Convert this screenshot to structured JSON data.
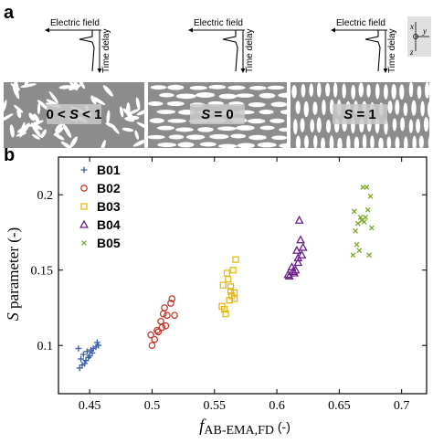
{
  "figure": {
    "panel_a_label": "a",
    "panel_b_label": "b"
  },
  "panel_a": {
    "field_label": "Electric field",
    "time_label": "Time delay",
    "coord_axes": [
      "x",
      "y",
      "z"
    ],
    "panels": [
      {
        "s_label_parts": [
          "0 < ",
          "S",
          " < 1"
        ],
        "kind": "mixed"
      },
      {
        "s_label_parts": [
          "",
          "S",
          " = 0"
        ],
        "kind": "horizontal"
      },
      {
        "s_label_parts": [
          "",
          "S",
          " = 1"
        ],
        "kind": "vertical"
      }
    ]
  },
  "chart_data": {
    "type": "scatter",
    "xlabel_main": "f",
    "xlabel_sub": "AB-EMA,FD",
    "xlabel_unit": " (-)",
    "ylabel_main": "S",
    "ylabel_rest": " parameter  (-)",
    "xlim": [
      0.425,
      0.72
    ],
    "ylim": [
      0.068,
      0.225
    ],
    "xticks": [
      0.45,
      0.5,
      0.55,
      0.6,
      0.65,
      0.7
    ],
    "xtick_labels": [
      "0.45",
      "0.5",
      "0.55",
      "0.6",
      "0.65",
      "0.7"
    ],
    "yticks": [
      0.1,
      0.15,
      0.2
    ],
    "ytick_labels": [
      "0.1",
      "0.15",
      "0.2"
    ],
    "grid": false,
    "legend_position": "top-left",
    "series": [
      {
        "name": "B01",
        "marker": "plus",
        "color": "#3a5faa",
        "points": [
          [
            0.441,
            0.098
          ],
          [
            0.445,
            0.094
          ],
          [
            0.448,
            0.096
          ],
          [
            0.443,
            0.091
          ],
          [
            0.447,
            0.09
          ],
          [
            0.451,
            0.097
          ],
          [
            0.453,
            0.098
          ],
          [
            0.456,
            0.102
          ],
          [
            0.452,
            0.095
          ],
          [
            0.45,
            0.093
          ],
          [
            0.442,
            0.085
          ],
          [
            0.444,
            0.087
          ],
          [
            0.449,
            0.092
          ],
          [
            0.455,
            0.099
          ],
          [
            0.446,
            0.088
          ],
          [
            0.457,
            0.1
          ]
        ]
      },
      {
        "name": "B02",
        "marker": "circle",
        "color": "#c0392b",
        "points": [
          [
            0.5,
            0.1
          ],
          [
            0.502,
            0.104
          ],
          [
            0.505,
            0.109
          ],
          [
            0.508,
            0.112
          ],
          [
            0.507,
            0.116
          ],
          [
            0.512,
            0.12
          ],
          [
            0.51,
            0.125
          ],
          [
            0.515,
            0.128
          ],
          [
            0.516,
            0.131
          ],
          [
            0.511,
            0.113
          ],
          [
            0.518,
            0.12
          ],
          [
            0.504,
            0.11
          ],
          [
            0.509,
            0.121
          ],
          [
            0.499,
            0.107
          ]
        ]
      },
      {
        "name": "B03",
        "marker": "square",
        "color": "#e6b817",
        "points": [
          [
            0.556,
            0.126
          ],
          [
            0.559,
            0.121
          ],
          [
            0.562,
            0.13
          ],
          [
            0.564,
            0.133
          ],
          [
            0.566,
            0.135
          ],
          [
            0.563,
            0.139
          ],
          [
            0.561,
            0.144
          ],
          [
            0.565,
            0.15
          ],
          [
            0.567,
            0.157
          ],
          [
            0.56,
            0.148
          ],
          [
            0.558,
            0.124
          ],
          [
            0.563,
            0.136
          ],
          [
            0.557,
            0.14
          ],
          [
            0.566,
            0.131
          ]
        ]
      },
      {
        "name": "B04",
        "marker": "triangle",
        "color": "#6a1b8a",
        "points": [
          [
            0.61,
            0.146
          ],
          [
            0.613,
            0.149
          ],
          [
            0.615,
            0.15
          ],
          [
            0.617,
            0.155
          ],
          [
            0.62,
            0.16
          ],
          [
            0.616,
            0.163
          ],
          [
            0.619,
            0.17
          ],
          [
            0.614,
            0.148
          ],
          [
            0.618,
            0.183
          ],
          [
            0.612,
            0.152
          ],
          [
            0.621,
            0.165
          ],
          [
            0.609,
            0.147
          ],
          [
            0.617,
            0.158
          ]
        ]
      },
      {
        "name": "B05",
        "marker": "x",
        "color": "#7aa828",
        "points": [
          [
            0.662,
            0.189
          ],
          [
            0.665,
            0.181
          ],
          [
            0.667,
            0.185
          ],
          [
            0.668,
            0.183
          ],
          [
            0.67,
            0.182
          ],
          [
            0.671,
            0.185
          ],
          [
            0.673,
            0.19
          ],
          [
            0.669,
            0.205
          ],
          [
            0.672,
            0.205
          ],
          [
            0.675,
            0.199
          ],
          [
            0.664,
            0.167
          ],
          [
            0.666,
            0.163
          ],
          [
            0.674,
            0.16
          ],
          [
            0.661,
            0.16
          ],
          [
            0.676,
            0.178
          ],
          [
            0.663,
            0.176
          ]
        ]
      }
    ]
  }
}
